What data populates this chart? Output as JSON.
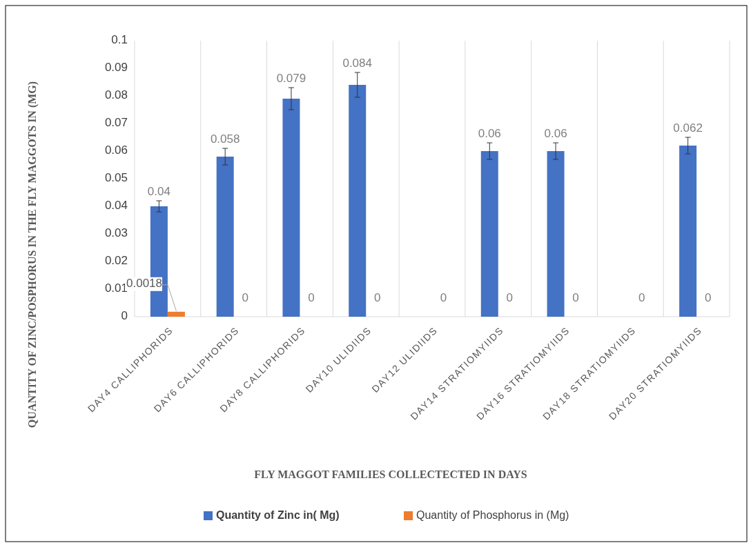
{
  "chart_data": {
    "type": "bar",
    "xlabel": "FLY MAGGOT FAMILIES COLLECTECTED IN DAYS",
    "ylabel": "QUANTITY OF ZINC/POSPHORUS IN THE FLY MAGGOTS IN (MG)",
    "categories": [
      "DAY4 CALLIPHORIDS",
      "DAY6 CALLIPHORIDS",
      "DAY8 CALLIPHORIDS",
      "DAY10 ULIDIIDS",
      "DAY12 ULIDIIDS",
      "DAY14 STRATIOMYIIDS",
      "DAY16 STRATIOMYIIDS",
      "DAY18 STRATIOMYIIDS",
      "DAY20 STRATIOMYIIDS"
    ],
    "series": [
      {
        "name": "Quantity of Zinc in( Mg)",
        "color": "#4472c4",
        "values": [
          0.04,
          0.058,
          0.079,
          0.084,
          null,
          0.06,
          0.06,
          null,
          0.062
        ],
        "errors": [
          0.002,
          0.003,
          0.004,
          0.0045,
          null,
          0.003,
          0.003,
          null,
          0.003
        ],
        "value_labels": [
          "0.04",
          "0.058",
          "0.079",
          "0.084",
          null,
          "0.06",
          "0.06",
          null,
          "0.062"
        ]
      },
      {
        "name": "Quantity of Phosphorus in (Mg)",
        "color": "#ed7d31",
        "values": [
          0.0018,
          0,
          0,
          0,
          0,
          0,
          0,
          0,
          0
        ],
        "value_labels": [
          "0.0018",
          "0",
          "0",
          "0",
          "0",
          "0",
          "0",
          "0",
          "0"
        ]
      }
    ],
    "ylim": [
      0,
      0.1
    ],
    "yticks": [
      0,
      0.01,
      0.02,
      0.03,
      0.04,
      0.05,
      0.06,
      0.07,
      0.08,
      0.09,
      0.1
    ],
    "grid": "x",
    "legend": "bottom"
  }
}
